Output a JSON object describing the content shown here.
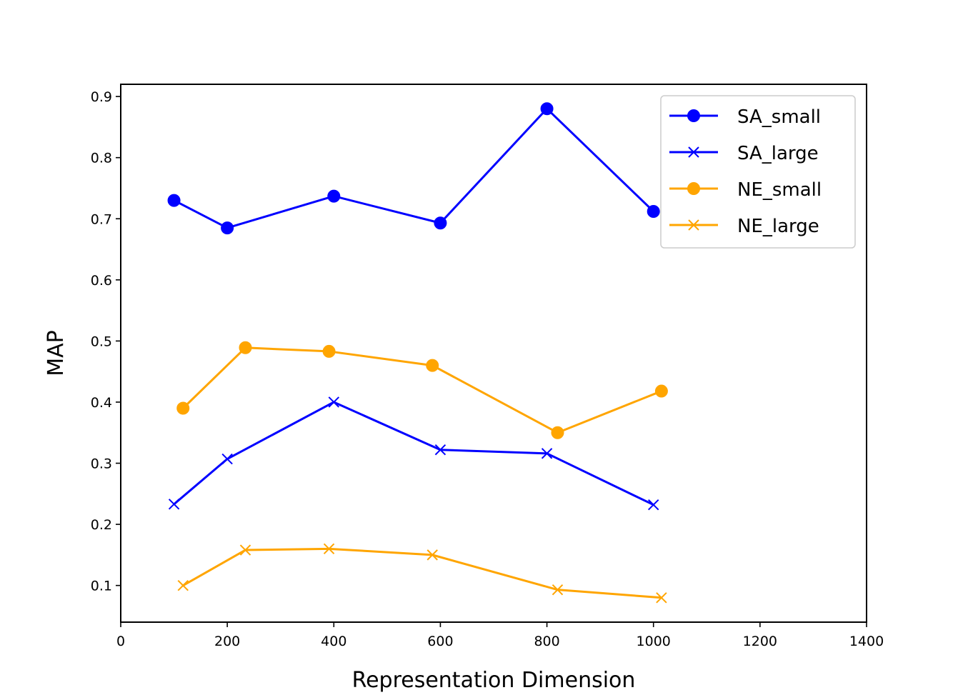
{
  "chart_data": {
    "type": "line",
    "title": "",
    "xlabel": "Representation Dimension",
    "ylabel": "MAP",
    "xlim": [
      0,
      1400
    ],
    "ylim": [
      0.04,
      0.92
    ],
    "xticks": [
      0,
      200,
      400,
      600,
      800,
      1000,
      1200,
      1400
    ],
    "yticks": [
      0.1,
      0.2,
      0.3,
      0.4,
      0.5,
      0.6,
      0.7,
      0.8,
      0.9
    ],
    "xtick_labels": [
      "0",
      "200",
      "400",
      "600",
      "800",
      "1000",
      "1200",
      "1400"
    ],
    "ytick_labels": [
      "0.1",
      "0.2",
      "0.3",
      "0.4",
      "0.5",
      "0.6",
      "0.7",
      "0.8",
      "0.9"
    ],
    "grid": false,
    "legend_position": "top-right",
    "series": [
      {
        "name": "SA_small",
        "color": "#0000ff",
        "marker": "circle",
        "x": [
          100,
          200,
          400,
          600,
          800,
          1000
        ],
        "y": [
          0.73,
          0.685,
          0.737,
          0.693,
          0.88,
          0.712
        ]
      },
      {
        "name": "SA_large",
        "color": "#0000ff",
        "marker": "x",
        "x": [
          100,
          200,
          400,
          600,
          800,
          1000
        ],
        "y": [
          0.233,
          0.307,
          0.4,
          0.322,
          0.316,
          0.232
        ]
      },
      {
        "name": "NE_small",
        "color": "#ffa500",
        "marker": "circle",
        "x": [
          117,
          234,
          391,
          585,
          820,
          1015
        ],
        "y": [
          0.39,
          0.489,
          0.483,
          0.46,
          0.35,
          0.418
        ]
      },
      {
        "name": "NE_large",
        "color": "#ffa500",
        "marker": "x",
        "x": [
          117,
          234,
          391,
          585,
          820,
          1015
        ],
        "y": [
          0.1,
          0.158,
          0.16,
          0.15,
          0.093,
          0.08
        ]
      }
    ]
  }
}
